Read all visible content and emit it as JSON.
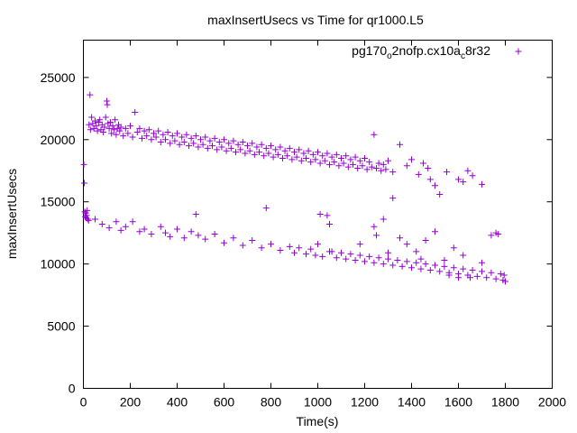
{
  "chart_data": {
    "type": "scatter",
    "title": "maxInsertUsecs vs Time for qr1000.L5",
    "xlabel": "Time(s)",
    "ylabel": "maxInsertUsecs",
    "xlim": [
      0,
      2000
    ],
    "ylim": [
      0,
      28000
    ],
    "x_ticks": [
      0,
      200,
      400,
      600,
      800,
      1000,
      1200,
      1400,
      1600,
      1800,
      2000
    ],
    "y_ticks": [
      0,
      5000,
      10000,
      15000,
      20000,
      25000
    ],
    "x_tick_labels": [
      "0",
      "200",
      "400",
      "600",
      "800",
      "1000",
      "1200",
      "1400",
      "1600",
      "1800",
      "2000"
    ],
    "y_tick_labels": [
      "0",
      "5000",
      "10000",
      "15000",
      "20000",
      "25000"
    ],
    "grid": false,
    "legend_position": "top-right",
    "legend": {
      "base": "pg170",
      "sub1": "o",
      "mid": "2nofp.cx10a",
      "sub2": "c",
      "tail": "8r32"
    },
    "series": [
      {
        "name": "pg170_o2nofp.cx10a_c8r32",
        "color": "#9400d3",
        "marker": "plus",
        "points": [
          [
            2,
            18000
          ],
          [
            4,
            16500
          ],
          [
            6,
            14200
          ],
          [
            8,
            13800
          ],
          [
            10,
            14100
          ],
          [
            12,
            13700
          ],
          [
            14,
            13900
          ],
          [
            16,
            14300
          ],
          [
            18,
            13600
          ],
          [
            22,
            13500
          ],
          [
            24,
            21200
          ],
          [
            28,
            23600
          ],
          [
            30,
            20800
          ],
          [
            35,
            21800
          ],
          [
            40,
            21300
          ],
          [
            45,
            20900
          ],
          [
            50,
            21500
          ],
          [
            55,
            21100
          ],
          [
            60,
            20700
          ],
          [
            65,
            21400
          ],
          [
            70,
            21600
          ],
          [
            75,
            20800
          ],
          [
            80,
            21200
          ],
          [
            85,
            20600
          ],
          [
            90,
            21000
          ],
          [
            95,
            21800
          ],
          [
            100,
            23100
          ],
          [
            102,
            22800
          ],
          [
            105,
            21300
          ],
          [
            110,
            20900
          ],
          [
            115,
            21400
          ],
          [
            120,
            20500
          ],
          [
            125,
            21100
          ],
          [
            130,
            20800
          ],
          [
            135,
            21600
          ],
          [
            140,
            20400
          ],
          [
            145,
            20900
          ],
          [
            150,
            21200
          ],
          [
            155,
            20700
          ],
          [
            160,
            21000
          ],
          [
            170,
            20300
          ],
          [
            180,
            20900
          ],
          [
            190,
            20500
          ],
          [
            200,
            21100
          ],
          [
            210,
            20200
          ],
          [
            220,
            22200
          ],
          [
            230,
            20600
          ],
          [
            240,
            20900
          ],
          [
            250,
            20100
          ],
          [
            260,
            20700
          ],
          [
            270,
            20300
          ],
          [
            280,
            20800
          ],
          [
            290,
            20000
          ],
          [
            300,
            20500
          ],
          [
            310,
            20200
          ],
          [
            320,
            20700
          ],
          [
            330,
            19800
          ],
          [
            340,
            20400
          ],
          [
            350,
            20000
          ],
          [
            360,
            20600
          ],
          [
            370,
            19700
          ],
          [
            380,
            20300
          ],
          [
            390,
            19900
          ],
          [
            400,
            20500
          ],
          [
            410,
            19600
          ],
          [
            420,
            20200
          ],
          [
            430,
            19800
          ],
          [
            440,
            20400
          ],
          [
            450,
            19500
          ],
          [
            460,
            20100
          ],
          [
            470,
            19700
          ],
          [
            480,
            20300
          ],
          [
            490,
            19400
          ],
          [
            500,
            20000
          ],
          [
            510,
            19600
          ],
          [
            520,
            20200
          ],
          [
            530,
            19300
          ],
          [
            540,
            19900
          ],
          [
            550,
            19500
          ],
          [
            560,
            20100
          ],
          [
            570,
            19200
          ],
          [
            580,
            19800
          ],
          [
            590,
            19400
          ],
          [
            600,
            20000
          ],
          [
            610,
            19100
          ],
          [
            620,
            19700
          ],
          [
            630,
            19300
          ],
          [
            640,
            19900
          ],
          [
            650,
            19000
          ],
          [
            660,
            19600
          ],
          [
            670,
            19200
          ],
          [
            680,
            19800
          ],
          [
            690,
            18900
          ],
          [
            700,
            19500
          ],
          [
            710,
            19100
          ],
          [
            720,
            19700
          ],
          [
            730,
            18800
          ],
          [
            740,
            19400
          ],
          [
            750,
            19000
          ],
          [
            760,
            19600
          ],
          [
            770,
            18700
          ],
          [
            780,
            19300
          ],
          [
            790,
            18900
          ],
          [
            800,
            19500
          ],
          [
            810,
            18600
          ],
          [
            820,
            19200
          ],
          [
            830,
            18800
          ],
          [
            840,
            19400
          ],
          [
            850,
            18500
          ],
          [
            860,
            19100
          ],
          [
            870,
            18700
          ],
          [
            880,
            19300
          ],
          [
            890,
            18400
          ],
          [
            900,
            19000
          ],
          [
            910,
            18600
          ],
          [
            920,
            19200
          ],
          [
            930,
            18300
          ],
          [
            940,
            18900
          ],
          [
            950,
            18500
          ],
          [
            960,
            19100
          ],
          [
            970,
            18200
          ],
          [
            980,
            18800
          ],
          [
            990,
            18400
          ],
          [
            1000,
            19000
          ],
          [
            1010,
            18100
          ],
          [
            1020,
            18700
          ],
          [
            1030,
            18300
          ],
          [
            1040,
            18900
          ],
          [
            1050,
            18000
          ],
          [
            1060,
            18600
          ],
          [
            1070,
            18200
          ],
          [
            1080,
            18800
          ],
          [
            1090,
            17900
          ],
          [
            1100,
            18500
          ],
          [
            1110,
            18100
          ],
          [
            1120,
            18700
          ],
          [
            1130,
            17800
          ],
          [
            1140,
            18400
          ],
          [
            1150,
            18000
          ],
          [
            1160,
            18600
          ],
          [
            1170,
            17700
          ],
          [
            1180,
            18300
          ],
          [
            1190,
            17900
          ],
          [
            1200,
            18500
          ],
          [
            1210,
            17600
          ],
          [
            1220,
            18200
          ],
          [
            1230,
            17800
          ],
          [
            1240,
            20400
          ],
          [
            1250,
            17700
          ],
          [
            1260,
            18100
          ],
          [
            1270,
            17500
          ],
          [
            1280,
            18000
          ],
          [
            1290,
            17600
          ],
          [
            1300,
            18300
          ],
          [
            1320,
            17400
          ],
          [
            1350,
            19600
          ],
          [
            1380,
            17900
          ],
          [
            1400,
            18400
          ],
          [
            1430,
            17200
          ],
          [
            1450,
            18100
          ],
          [
            1470,
            17700
          ],
          [
            1480,
            16800
          ],
          [
            1500,
            16300
          ],
          [
            1520,
            15600
          ],
          [
            1550,
            17400
          ],
          [
            1600,
            16800
          ],
          [
            1620,
            16600
          ],
          [
            1640,
            17500
          ],
          [
            1660,
            17100
          ],
          [
            1700,
            16400
          ],
          [
            1240,
            13000
          ],
          [
            1250,
            12300
          ],
          [
            50,
            13600
          ],
          [
            80,
            13200
          ],
          [
            110,
            12900
          ],
          [
            140,
            13400
          ],
          [
            160,
            12700
          ],
          [
            180,
            13000
          ],
          [
            210,
            13400
          ],
          [
            240,
            12600
          ],
          [
            260,
            12800
          ],
          [
            290,
            12400
          ],
          [
            330,
            13000
          ],
          [
            350,
            12500
          ],
          [
            370,
            12200
          ],
          [
            400,
            12800
          ],
          [
            430,
            12100
          ],
          [
            460,
            12600
          ],
          [
            480,
            14000
          ],
          [
            490,
            12300
          ],
          [
            520,
            12000
          ],
          [
            560,
            12400
          ],
          [
            600,
            11700
          ],
          [
            640,
            12100
          ],
          [
            680,
            11500
          ],
          [
            720,
            11900
          ],
          [
            760,
            11300
          ],
          [
            780,
            14500
          ],
          [
            800,
            11600
          ],
          [
            840,
            11100
          ],
          [
            880,
            11400
          ],
          [
            900,
            10900
          ],
          [
            920,
            11300
          ],
          [
            950,
            10800
          ],
          [
            970,
            11200
          ],
          [
            990,
            10700
          ],
          [
            1000,
            11600
          ],
          [
            1010,
            14000
          ],
          [
            1020,
            10600
          ],
          [
            1040,
            13900
          ],
          [
            1050,
            13200
          ],
          [
            1060,
            11000
          ],
          [
            1080,
            10500
          ],
          [
            1100,
            10900
          ],
          [
            1120,
            10400
          ],
          [
            1140,
            10800
          ],
          [
            1160,
            10300
          ],
          [
            1180,
            10700
          ],
          [
            1200,
            10200
          ],
          [
            1220,
            10600
          ],
          [
            1240,
            10100
          ],
          [
            1260,
            10500
          ],
          [
            1280,
            10000
          ],
          [
            1300,
            10400
          ],
          [
            1320,
            9900
          ],
          [
            1340,
            10300
          ],
          [
            1360,
            9800
          ],
          [
            1380,
            10200
          ],
          [
            1400,
            9700
          ],
          [
            1420,
            10100
          ],
          [
            1440,
            9600
          ],
          [
            1460,
            10000
          ],
          [
            1480,
            9500
          ],
          [
            1500,
            9900
          ],
          [
            1520,
            9400
          ],
          [
            1540,
            9800
          ],
          [
            1560,
            9300
          ],
          [
            1580,
            9700
          ],
          [
            1600,
            9200
          ],
          [
            1620,
            9600
          ],
          [
            1640,
            9100
          ],
          [
            1660,
            9500
          ],
          [
            1680,
            9000
          ],
          [
            1700,
            9400
          ],
          [
            1720,
            8900
          ],
          [
            1740,
            9300
          ],
          [
            1760,
            8800
          ],
          [
            1780,
            9200
          ],
          [
            1790,
            8700
          ],
          [
            1795,
            9100
          ],
          [
            1800,
            8600
          ],
          [
            1760,
            12500
          ],
          [
            1280,
            13600
          ],
          [
            1320,
            15300
          ],
          [
            1350,
            12100
          ],
          [
            1380,
            11600
          ],
          [
            1420,
            11000
          ],
          [
            1460,
            11900
          ],
          [
            1500,
            12600
          ],
          [
            1540,
            10300
          ],
          [
            1580,
            11300
          ],
          [
            1620,
            10700
          ],
          [
            1050,
            11000
          ],
          [
            1180,
            11600
          ],
          [
            1300,
            10900
          ],
          [
            1440,
            10400
          ],
          [
            1700,
            10100
          ],
          [
            1740,
            12300
          ],
          [
            1770,
            12400
          ],
          [
            1560,
            9100
          ],
          [
            1600,
            8900
          ],
          [
            1650,
            8900
          ]
        ]
      }
    ]
  }
}
